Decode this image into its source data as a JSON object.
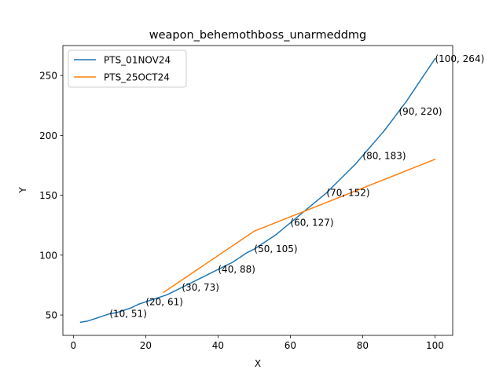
{
  "chart_data": {
    "type": "line",
    "title": "weapon_behemothboss_unarmeddmg",
    "xlabel": "X",
    "ylabel": "Y",
    "xlim": [
      -2.9,
      104.9
    ],
    "ylim": [
      33,
      275
    ],
    "xticks": [
      0,
      20,
      40,
      60,
      80,
      100
    ],
    "yticks": [
      50,
      100,
      150,
      200,
      250
    ],
    "legend_position": "top-left",
    "grid": false,
    "series": [
      {
        "name": "PTS_01NOV24",
        "color": "#1f77b4",
        "x": [
          2,
          4,
          6,
          8,
          10,
          12,
          14,
          16,
          18,
          20,
          22,
          24,
          26,
          28,
          30,
          32,
          34,
          36,
          38,
          40,
          42,
          44,
          46,
          48,
          50,
          52,
          54,
          56,
          58,
          60,
          62,
          64,
          66,
          68,
          70,
          72,
          74,
          76,
          78,
          80,
          82,
          84,
          86,
          88,
          90,
          92,
          94,
          96,
          98,
          100
        ],
        "y": [
          44,
          45,
          47,
          49,
          51,
          52,
          54,
          56,
          59,
          61,
          63,
          65,
          67,
          70,
          73,
          76,
          79,
          82,
          85,
          88,
          91,
          94,
          98,
          102,
          105,
          109,
          113,
          117,
          122,
          127,
          132,
          137,
          142,
          147,
          152,
          158,
          164,
          170,
          176,
          183,
          190,
          197,
          204,
          212,
          220,
          228,
          237,
          246,
          255,
          264
        ]
      },
      {
        "name": "PTS_25OCT24",
        "color": "#ff7f0e",
        "x": [
          25,
          50,
          100
        ],
        "y": [
          69,
          120,
          180
        ]
      }
    ],
    "annotations": [
      {
        "x": 10,
        "y": 51,
        "text": "(10, 51)"
      },
      {
        "x": 20,
        "y": 61,
        "text": "(20, 61)"
      },
      {
        "x": 30,
        "y": 73,
        "text": "(30, 73)"
      },
      {
        "x": 40,
        "y": 88,
        "text": "(40, 88)"
      },
      {
        "x": 50,
        "y": 105,
        "text": "(50, 105)"
      },
      {
        "x": 60,
        "y": 127,
        "text": "(60, 127)"
      },
      {
        "x": 70,
        "y": 152,
        "text": "(70, 152)"
      },
      {
        "x": 80,
        "y": 183,
        "text": "(80, 183)"
      },
      {
        "x": 90,
        "y": 220,
        "text": "(90, 220)"
      },
      {
        "x": 100,
        "y": 264,
        "text": "(100, 264)"
      }
    ]
  }
}
